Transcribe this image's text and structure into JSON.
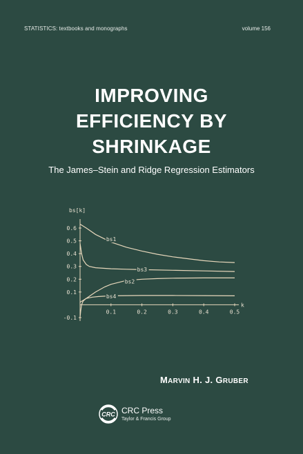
{
  "series_line": "STATISTICS:  textbooks and monographs",
  "volume": "volume 156",
  "title_lines": [
    "IMPROVING",
    "EFFICIENCY BY",
    "SHRINKAGE"
  ],
  "subtitle": "The James–Stein and Ridge Regression Estimators",
  "author": {
    "first": "M",
    "first_rest": "ARVIN",
    "middle": "H. J.",
    "last": "G",
    "last_rest": "RUBER"
  },
  "publisher": {
    "name": "CRC Press",
    "group": "Taylor & Francis Group",
    "logo_text": "CRC"
  },
  "colors": {
    "background": "#2c4a42",
    "curves": "#e8d8bc",
    "text": "#ffffff"
  },
  "chart_data": {
    "type": "line",
    "ylabel": "bs[k]",
    "xlabel": "k",
    "xlim": [
      0,
      0.5
    ],
    "ylim": [
      -0.1,
      0.65
    ],
    "xticks": [
      "0.1",
      "0.2",
      "0.3",
      "0.4",
      "0.5"
    ],
    "yticks": [
      "0.6",
      "0.5",
      "0.4",
      "0.3",
      "0.2",
      "0.1",
      "-0.1"
    ],
    "series": [
      {
        "name": "bs1",
        "x": [
          0,
          0.02,
          0.05,
          0.1,
          0.15,
          0.2,
          0.25,
          0.3,
          0.35,
          0.4,
          0.45,
          0.5
        ],
        "values": [
          0.63,
          0.6,
          0.55,
          0.49,
          0.45,
          0.42,
          0.395,
          0.375,
          0.36,
          0.345,
          0.335,
          0.33
        ]
      },
      {
        "name": "bs3",
        "x": [
          0,
          0.005,
          0.01,
          0.02,
          0.03,
          0.05,
          0.1,
          0.15,
          0.2,
          0.3,
          0.4,
          0.5
        ],
        "values": [
          0.48,
          0.4,
          0.35,
          0.315,
          0.3,
          0.29,
          0.282,
          0.278,
          0.275,
          0.27,
          0.265,
          0.26
        ]
      },
      {
        "name": "bs2",
        "x": [
          0,
          0.02,
          0.05,
          0.08,
          0.1,
          0.15,
          0.2,
          0.25,
          0.3,
          0.4,
          0.5
        ],
        "values": [
          0.02,
          0.05,
          0.1,
          0.14,
          0.16,
          0.19,
          0.2,
          0.205,
          0.208,
          0.21,
          0.21
        ]
      },
      {
        "name": "bs4",
        "x": [
          0,
          0.002,
          0.005,
          0.01,
          0.02,
          0.04,
          0.06,
          0.1,
          0.15,
          0.2,
          0.3,
          0.4,
          0.5
        ],
        "values": [
          -0.1,
          -0.05,
          0.0,
          0.03,
          0.05,
          0.06,
          0.065,
          0.07,
          0.072,
          0.073,
          0.073,
          0.072,
          0.07
        ]
      }
    ]
  }
}
